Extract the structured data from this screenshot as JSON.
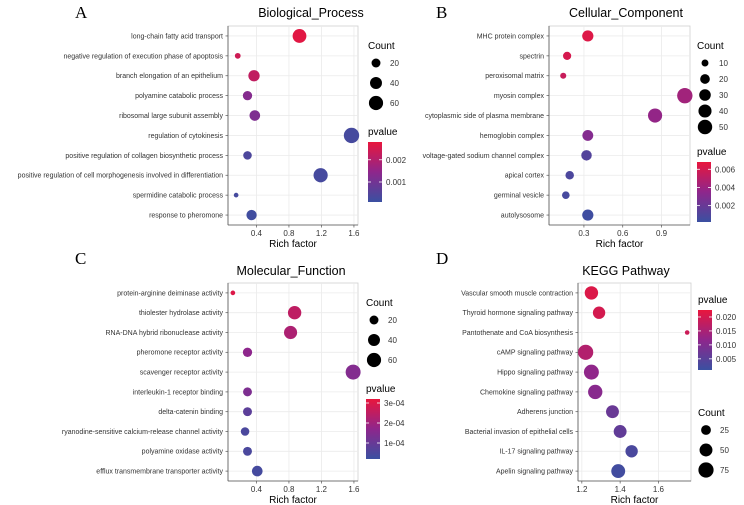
{
  "chart_data": [
    {
      "id": "A",
      "type": "scatter",
      "panel_label": "A",
      "title": "Biological_Process",
      "xlabel": "Rich factor",
      "ylabel": "",
      "xlim": [
        0.05,
        1.65
      ],
      "xticks": [
        0.4,
        0.8,
        1.2,
        1.6
      ],
      "xtick_labels": [
        "0.4",
        "0.8",
        "1.2",
        "1.6"
      ],
      "grid": true,
      "legend_order": "count-first",
      "categories": [
        "long-chain fatty acid transport",
        "negative regulation of execution phase of apoptosis",
        "branch elongation of an epithelium",
        "polyamine catabolic process",
        "ribosomal large subunit assembly",
        "regulation of cytokinesis",
        "positive regulation of collagen biosynthetic process",
        "positive regulation of cell morphogenesis involved in differentiation",
        "spermidine catabolic process",
        "response to pheromone"
      ],
      "points": [
        {
          "term": "long-chain fatty acid transport",
          "rich_factor": 0.93,
          "count": 56,
          "pvalue": 0.0027
        },
        {
          "term": "negative regulation of execution phase of apoptosis",
          "rich_factor": 0.17,
          "count": 8,
          "pvalue": 0.0024
        },
        {
          "term": "branch elongation of an epithelium",
          "rich_factor": 0.37,
          "count": 35,
          "pvalue": 0.0022
        },
        {
          "term": "polyamine catabolic process",
          "rich_factor": 0.29,
          "count": 22,
          "pvalue": 0.0013
        },
        {
          "term": "ribosomal large subunit assembly",
          "rich_factor": 0.38,
          "count": 30,
          "pvalue": 0.0012
        },
        {
          "term": "regulation of cytokinesis",
          "rich_factor": 1.57,
          "count": 72,
          "pvalue": 0.0003
        },
        {
          "term": "positive regulation of collagen biosynthetic process",
          "rich_factor": 0.29,
          "count": 18,
          "pvalue": 0.0004
        },
        {
          "term": "positive regulation of cell morphogenesis involved in differentiation",
          "rich_factor": 1.19,
          "count": 60,
          "pvalue": 0.0003
        },
        {
          "term": "spermidine catabolic process",
          "rich_factor": 0.15,
          "count": 6,
          "pvalue": 0.0003
        },
        {
          "term": "response to pheromone",
          "rich_factor": 0.34,
          "count": 28,
          "pvalue": 0.0002
        }
      ],
      "size_legend": {
        "title": "Count",
        "values": [
          20,
          40,
          60
        ],
        "labels": [
          "20",
          "40",
          "60"
        ],
        "domain": [
          5,
          75
        ]
      },
      "color_legend": {
        "title": "pvalue",
        "ticks": [
          0.001,
          0.002
        ],
        "labels": [
          "0.001",
          "0.002"
        ],
        "domain": [
          0.0001,
          0.0028
        ],
        "low_color": "#3a50a1",
        "high_color": "#e8163d"
      }
    },
    {
      "id": "B",
      "type": "scatter",
      "panel_label": "B",
      "title": "Cellular_Component",
      "xlabel": "Rich factor",
      "ylabel": "",
      "xlim": [
        0.03,
        1.12
      ],
      "xticks": [
        0.3,
        0.6,
        0.9
      ],
      "xtick_labels": [
        "0.3",
        "0.6",
        "0.9"
      ],
      "grid": true,
      "legend_order": "count-first",
      "categories": [
        "MHC protein complex",
        "spectrin",
        "peroxisomal matrix",
        "myosin complex",
        "cytoplasmic side of plasma membrane",
        "hemoglobin complex",
        "voltage-gated sodium channel complex",
        "apical cortex",
        "germinal vesicle",
        "autolysosome"
      ],
      "points": [
        {
          "term": "MHC protein complex",
          "rich_factor": 0.33,
          "count": 28,
          "pvalue": 0.0064
        },
        {
          "term": "spectrin",
          "rich_factor": 0.17,
          "count": 14,
          "pvalue": 0.0061
        },
        {
          "term": "peroxisomal matrix",
          "rich_factor": 0.14,
          "count": 8,
          "pvalue": 0.0056
        },
        {
          "term": "myosin complex",
          "rich_factor": 1.08,
          "count": 58,
          "pvalue": 0.0042
        },
        {
          "term": "cytoplasmic side of plasma membrane",
          "rich_factor": 0.85,
          "count": 48,
          "pvalue": 0.0037
        },
        {
          "term": "hemoglobin complex",
          "rich_factor": 0.33,
          "count": 26,
          "pvalue": 0.0031
        },
        {
          "term": "voltage-gated sodium channel complex",
          "rich_factor": 0.32,
          "count": 24,
          "pvalue": 0.0012
        },
        {
          "term": "apical cortex",
          "rich_factor": 0.19,
          "count": 15,
          "pvalue": 0.0009
        },
        {
          "term": "germinal vesicle",
          "rich_factor": 0.16,
          "count": 12,
          "pvalue": 0.0007
        },
        {
          "term": "autolysosome",
          "rich_factor": 0.33,
          "count": 28,
          "pvalue": 0.0004
        }
      ],
      "size_legend": {
        "title": "Count",
        "values": [
          10,
          20,
          30,
          40,
          50
        ],
        "labels": [
          "10",
          "20",
          "30",
          "40",
          "50"
        ],
        "domain": [
          5,
          60
        ]
      },
      "color_legend": {
        "title": "pvalue",
        "ticks": [
          0.002,
          0.004,
          0.006
        ],
        "labels": [
          "0.002",
          "0.004",
          "0.006"
        ],
        "domain": [
          0.0002,
          0.0068
        ],
        "low_color": "#3a50a1",
        "high_color": "#e8163d"
      }
    },
    {
      "id": "C",
      "type": "scatter",
      "panel_label": "C",
      "title": "Molecular_Function",
      "xlabel": "Rich factor",
      "ylabel": "",
      "xlim": [
        0.05,
        1.65
      ],
      "xticks": [
        0.4,
        0.8,
        1.2,
        1.6
      ],
      "xtick_labels": [
        "0.4",
        "0.8",
        "1.2",
        "1.6"
      ],
      "grid": true,
      "legend_order": "count-first",
      "categories": [
        "protein-arginine deiminase activity",
        "thiolester hydrolase activity",
        "RNA-DNA hybrid ribonuclease activity",
        "pheromone receptor activity",
        "scavenger receptor activity",
        "interleukin-1 receptor binding",
        "delta-catenin binding",
        "ryanodine-sensitive calcium-release channel activity",
        "polyamine oxidase activity",
        "efflux transmembrane transporter activity"
      ],
      "points": [
        {
          "term": "protein-arginine deiminase activity",
          "rich_factor": 0.11,
          "count": 6,
          "pvalue": 0.0003
        },
        {
          "term": "thiolester hydrolase activity",
          "rich_factor": 0.87,
          "count": 52,
          "pvalue": 0.00025
        },
        {
          "term": "RNA-DNA hybrid ribonuclease activity",
          "rich_factor": 0.82,
          "count": 50,
          "pvalue": 0.00022
        },
        {
          "term": "pheromone receptor activity",
          "rich_factor": 0.29,
          "count": 22,
          "pvalue": 0.00017
        },
        {
          "term": "scavenger receptor activity",
          "rich_factor": 1.59,
          "count": 68,
          "pvalue": 0.00015
        },
        {
          "term": "interleukin-1 receptor binding",
          "rich_factor": 0.29,
          "count": 20,
          "pvalue": 0.00014
        },
        {
          "term": "delta-catenin binding",
          "rich_factor": 0.29,
          "count": 20,
          "pvalue": 8e-05
        },
        {
          "term": "ryanodine-sensitive calcium-release channel activity",
          "rich_factor": 0.26,
          "count": 18,
          "pvalue": 5e-05
        },
        {
          "term": "polyamine oxidase activity",
          "rich_factor": 0.29,
          "count": 20,
          "pvalue": 5e-05
        },
        {
          "term": "efflux transmembrane transporter activity",
          "rich_factor": 0.41,
          "count": 30,
          "pvalue": 4e-05
        }
      ],
      "size_legend": {
        "title": "Count",
        "values": [
          20,
          40,
          60
        ],
        "labels": [
          "20",
          "40",
          "60"
        ],
        "domain": [
          5,
          75
        ]
      },
      "color_legend": {
        "title": "pvalue",
        "ticks": [
          0.0001,
          0.0002,
          0.0003
        ],
        "labels": [
          "1e-04",
          "2e-04",
          "3e-04"
        ],
        "domain": [
          2e-05,
          0.00032
        ],
        "low_color": "#3a50a1",
        "high_color": "#e8163d"
      }
    },
    {
      "id": "D",
      "type": "scatter",
      "panel_label": "D",
      "title": "KEGG Pathway",
      "xlabel": "Rich factor",
      "ylabel": "",
      "xlim": [
        1.18,
        1.77
      ],
      "xticks": [
        1.2,
        1.4,
        1.6
      ],
      "xtick_labels": [
        "1.2",
        "1.4",
        "1.6"
      ],
      "grid": true,
      "legend_order": "pvalue-first",
      "categories": [
        "Vascular smooth muscle contraction",
        "Thyroid hormone signaling pathway",
        "Pantothenate and CoA biosynthesis",
        "cAMP signaling pathway",
        "Hippo signaling pathway",
        "Chemokine signaling pathway",
        "Adherens junction",
        "Bacterial invasion of epithelial cells",
        "IL-17 signaling pathway",
        "Apelin signaling pathway"
      ],
      "points": [
        {
          "term": "Vascular smooth muscle contraction",
          "rich_factor": 1.25,
          "count": 55,
          "pvalue": 0.021
        },
        {
          "term": "Thyroid hormone signaling pathway",
          "rich_factor": 1.29,
          "count": 45,
          "pvalue": 0.02
        },
        {
          "term": "Pantothenate and CoA biosynthesis",
          "rich_factor": 1.75,
          "count": 4,
          "pvalue": 0.019
        },
        {
          "term": "cAMP signaling pathway",
          "rich_factor": 1.22,
          "count": 75,
          "pvalue": 0.016
        },
        {
          "term": "Hippo signaling pathway",
          "rich_factor": 1.25,
          "count": 72,
          "pvalue": 0.012
        },
        {
          "term": "Chemokine signaling pathway",
          "rich_factor": 1.27,
          "count": 65,
          "pvalue": 0.011
        },
        {
          "term": "Adherens junction",
          "rich_factor": 1.36,
          "count": 50,
          "pvalue": 0.007
        },
        {
          "term": "Bacterial invasion of epithelial cells",
          "rich_factor": 1.4,
          "count": 50,
          "pvalue": 0.006
        },
        {
          "term": "IL-17 signaling pathway",
          "rich_factor": 1.46,
          "count": 45,
          "pvalue": 0.003
        },
        {
          "term": "Apelin signaling pathway",
          "rich_factor": 1.39,
          "count": 60,
          "pvalue": 0.002
        }
      ],
      "size_legend": {
        "title": "Count",
        "values": [
          25,
          50,
          75
        ],
        "labels": [
          "25",
          "50",
          "75"
        ],
        "domain": [
          3,
          80
        ]
      },
      "color_legend": {
        "title": "pvalue",
        "ticks": [
          0.005,
          0.01,
          0.015,
          0.02
        ],
        "labels": [
          "0.005",
          "0.010",
          "0.015",
          "0.020"
        ],
        "domain": [
          0.001,
          0.0225
        ],
        "low_color": "#3a50a1",
        "high_color": "#e8163d"
      }
    }
  ]
}
